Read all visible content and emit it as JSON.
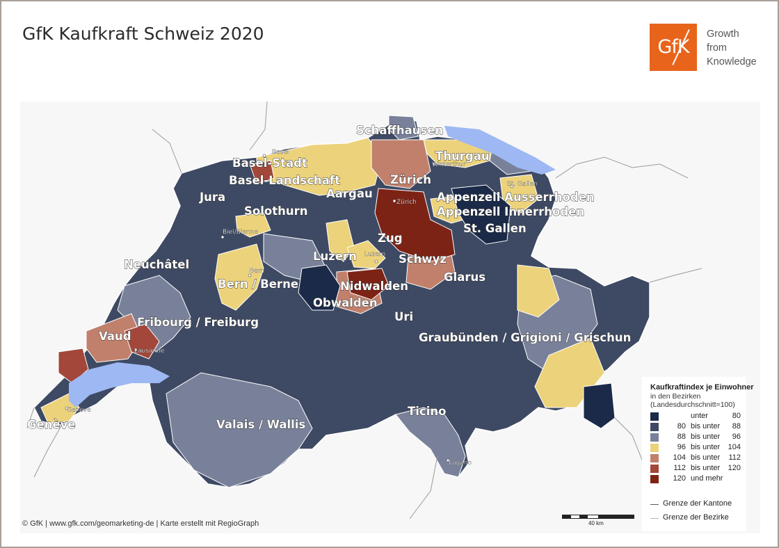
{
  "title": "GfK Kaufkraft Schweiz 2020",
  "logo": {
    "text": "GfK",
    "color": "#e8641b",
    "tagline": [
      "Growth",
      "from",
      "Knowledge"
    ]
  },
  "footer": "© GfK | www.gfk.com/geomarketing-de | Karte erstellt mit RegioGraph",
  "scale_label": "40 km",
  "legend": {
    "title": "Kaufkraftindex je Einwohner",
    "subtitle1": "in den Bezirken",
    "subtitle2": "(Landesdurchschnitt=100)",
    "classes": [
      {
        "lo": "",
        "mid": "unter",
        "hi": "80",
        "color": "#1b2a48"
      },
      {
        "lo": "80",
        "mid": "bis unter",
        "hi": "88",
        "color": "#3e4a63"
      },
      {
        "lo": "88",
        "mid": "bis unter",
        "hi": "96",
        "color": "#79819a"
      },
      {
        "lo": "96",
        "mid": "bis unter",
        "hi": "104",
        "color": "#ecd27a"
      },
      {
        "lo": "104",
        "mid": "bis unter",
        "hi": "112",
        "color": "#c1806c"
      },
      {
        "lo": "112",
        "mid": "bis unter",
        "hi": "120",
        "color": "#a2473a"
      },
      {
        "lo": "120",
        "mid": "und mehr",
        "hi": "",
        "color": "#7d2316"
      }
    ],
    "lines": [
      {
        "label": "Grenze der Kantone",
        "color": "#5a5a5a"
      },
      {
        "label": "Grenze der Bezirke",
        "color": "#b5b5b5"
      }
    ]
  },
  "cantons": {
    "schaffhausen": "Schaffhausen",
    "thurgau": "Thurgau",
    "basel_stadt": "Basel-Stadt",
    "basel_landschaft": "Basel-Landschaft",
    "zuerich": "Zürich",
    "aargau": "Aargau",
    "jura": "Jura",
    "appenzell_ar": "Appenzell Ausserrhoden",
    "appenzell_ir": "Appenzell Innerrhoden",
    "solothurn": "Solothurn",
    "st_gallen": "St. Gallen",
    "zug": "Zug",
    "luzern": "Luzern",
    "schwyz": "Schwyz",
    "neuchatel": "Neuchâtel",
    "glarus": "Glarus",
    "bern": "Bern / Berne",
    "nidwalden": "Nidwalden",
    "obwalden": "Obwalden",
    "uri": "Uri",
    "fribourg": "Fribourg / Freiburg",
    "vaud": "Vaud",
    "graubuenden": "Graubünden / Grigioni / Grischun",
    "geneve": "Genève",
    "valais": "Valais / Wallis",
    "ticino": "Ticino"
  },
  "cities": {
    "basel": "Basel",
    "winterthur": "Winterthur",
    "st_gallen": "St. Gallen",
    "zuerich": "Zürich",
    "biel": "Biel/Bienne",
    "luzern": "Luzern",
    "bern": "Bern",
    "lausanne": "Lausanne",
    "geneve": "Genève",
    "lugano": "Lugano"
  }
}
